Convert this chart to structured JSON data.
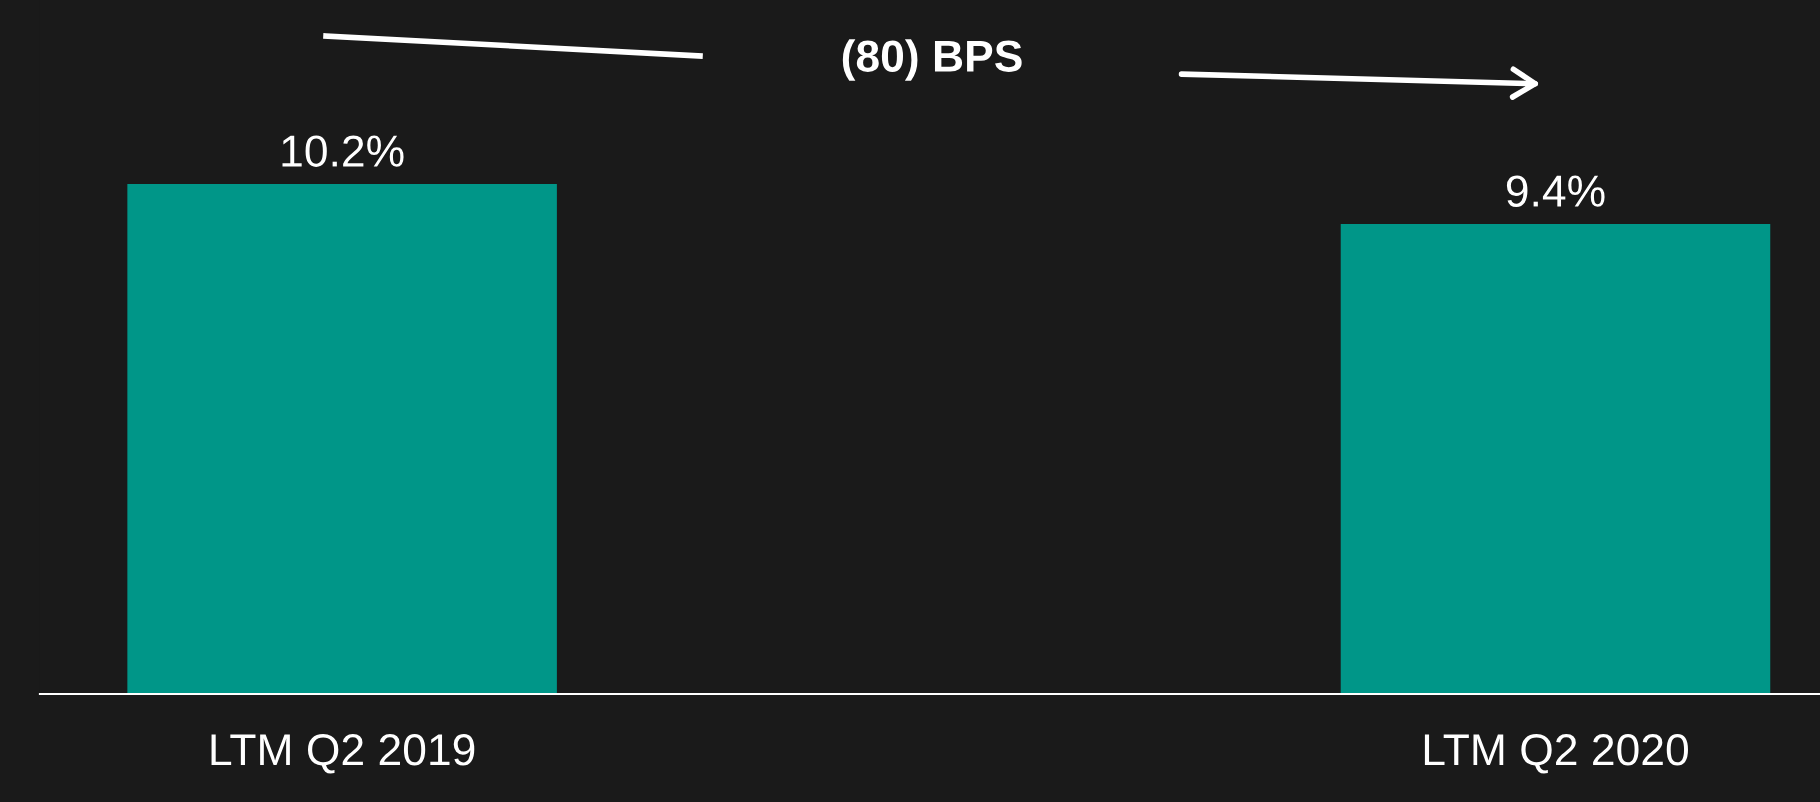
{
  "chart_data": {
    "type": "bar",
    "categories": [
      "LTM Q2 2019",
      "LTM Q2 2020"
    ],
    "values": [
      10.2,
      9.4
    ],
    "value_labels": [
      "10.2%",
      "9.4%"
    ],
    "color": "#009688",
    "annotations": [
      "(80) BPS"
    ],
    "grid": false,
    "legend": false
  }
}
